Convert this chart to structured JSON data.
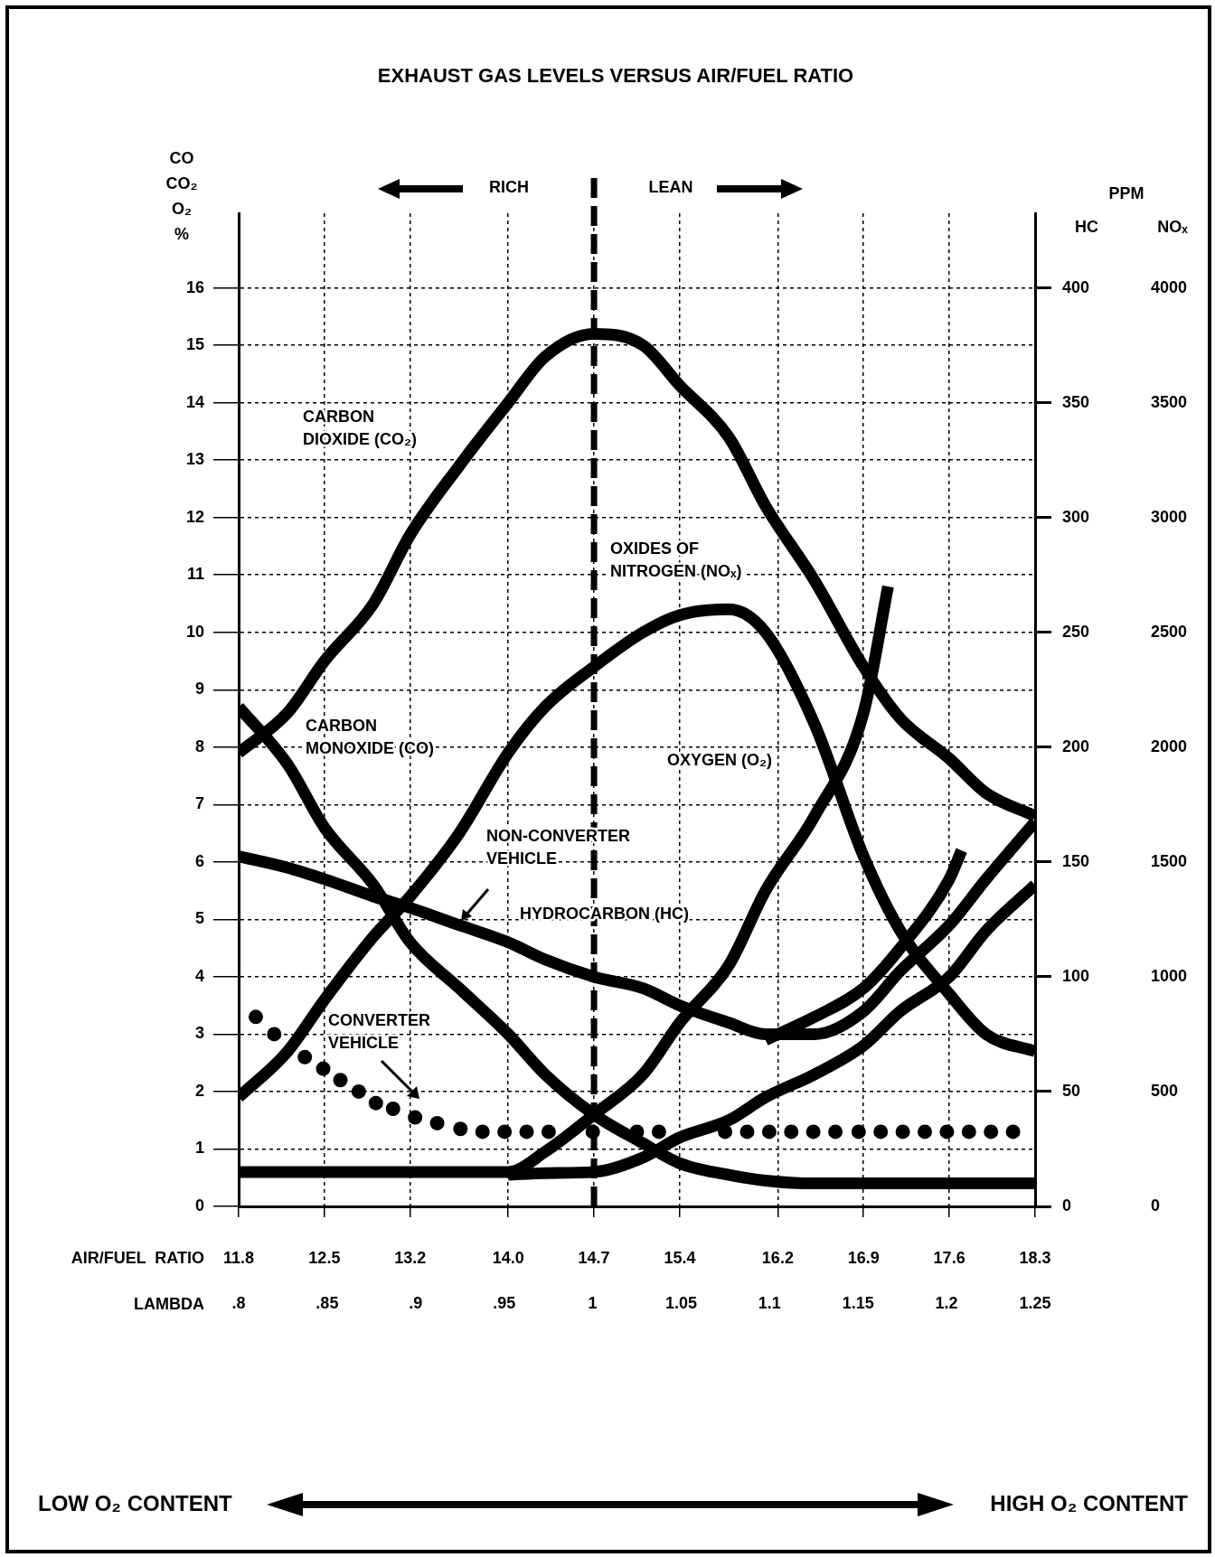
{
  "chart_data": {
    "type": "line",
    "title": "EXHAUST GAS LEVELS VERSUS AIR/FUEL RATIO",
    "xlabel": "AIR/FUEL  RATIO",
    "x2label": "LAMBDA",
    "ylabel": "CO\nCO₂\nO₂\n%",
    "y2label": "HC",
    "y3label": "NOₓ",
    "xlim": [
      11.8,
      18.3
    ],
    "xticks": [
      {
        "value": 11.8,
        "label": "11.8"
      },
      {
        "value": 12.5,
        "label": "12.5"
      },
      {
        "value": 13.2,
        "label": "13.2"
      },
      {
        "value": 14.0,
        "label": "14.0"
      },
      {
        "value": 14.7,
        "label": "14.7"
      },
      {
        "value": 15.4,
        "label": "15.4"
      },
      {
        "value": 16.2,
        "label": "16.2"
      },
      {
        "value": 16.9,
        "label": "16.9"
      },
      {
        "value": 17.6,
        "label": "17.6"
      },
      {
        "value": 18.3,
        "label": "18.3"
      }
    ],
    "x2lim": [
      0.8,
      1.25
    ],
    "x2ticks": [
      {
        "value": 0.8,
        "label": ".8"
      },
      {
        "value": 0.85,
        "label": ".85"
      },
      {
        "value": 0.9,
        "label": ".9"
      },
      {
        "value": 0.95,
        "label": ".95"
      },
      {
        "value": 1,
        "label": "1"
      },
      {
        "value": 1.05,
        "label": "1.05"
      },
      {
        "value": 1.1,
        "label": "1.1"
      },
      {
        "value": 1.15,
        "label": "1.15"
      },
      {
        "value": 1.2,
        "label": "1.2"
      },
      {
        "value": 1.25,
        "label": "1.25"
      }
    ],
    "ylim": [
      0,
      17.3
    ],
    "yticks": [
      0,
      1,
      2,
      3,
      4,
      5,
      6,
      7,
      8,
      9,
      10,
      11,
      12,
      13,
      14,
      15,
      16
    ],
    "y2lim": [
      0,
      432.5
    ],
    "y2ticks": [
      0,
      50,
      100,
      150,
      200,
      250,
      300,
      350,
      400
    ],
    "y3lim": [
      0,
      4325
    ],
    "y3ticks": [
      0,
      500,
      1000,
      1500,
      2000,
      2500,
      3000,
      3500,
      4000
    ],
    "grid": true,
    "marker": "none",
    "line_style": "solid",
    "series": [
      {
        "color": "#000000",
        "x": [
          11.8,
          12.2,
          12.5,
          12.9,
          13.2,
          13.6,
          14.0,
          14.3,
          14.7,
          15.1,
          15.4,
          15.8,
          16.1,
          16.5,
          16.9,
          17.2,
          17.6,
          17.9,
          18.3
        ],
        "values": [
          7.9,
          8.6,
          9.5,
          10.5,
          11.7,
          12.9,
          14.0,
          14.8,
          15.2,
          15.0,
          14.3,
          13.4,
          12.2,
          10.9,
          9.4,
          8.5,
          7.8,
          7.2,
          6.8
        ]
      },
      {
        "color": "#000000",
        "x": [
          11.8,
          12.2,
          12.5,
          12.9,
          13.2,
          13.6,
          14.0,
          14.3,
          14.7,
          15.1,
          15.4,
          15.8,
          16.1,
          16.5,
          16.9,
          17.2,
          17.6,
          17.9,
          18.3
        ],
        "values": [
          8.7,
          7.7,
          6.6,
          5.6,
          4.6,
          3.8,
          3.0,
          2.3,
          1.6,
          1.1,
          0.75,
          0.55,
          0.45,
          0.4,
          0.4,
          0.4,
          0.4,
          0.4,
          0.4
        ]
      },
      {
        "color": "#000000",
        "x": [
          11.8,
          12.2,
          12.5,
          12.9,
          13.2,
          13.6,
          14.0,
          14.3,
          14.7,
          15.1,
          15.4,
          15.8,
          16.1,
          16.5,
          16.9,
          17.2,
          17.6,
          17.9,
          18.3
        ],
        "values": [
          1.9,
          2.7,
          3.6,
          4.7,
          5.4,
          6.5,
          7.9,
          8.7,
          9.4,
          10.0,
          10.3,
          10.4,
          10.0,
          8.4,
          6.1,
          4.8,
          3.7,
          3.0,
          2.7
        ]
      },
      {
        "color": "#000000",
        "x": [
          11.8,
          12.2,
          12.5,
          12.9,
          13.2,
          13.6,
          14.0,
          14.3,
          14.7,
          15.1,
          15.4,
          15.8,
          16.1,
          16.5,
          16.9,
          17.2,
          17.6,
          17.9,
          18.3
        ],
        "values": [
          6.1,
          5.9,
          5.7,
          5.4,
          5.2,
          4.9,
          4.6,
          4.3,
          4.0,
          3.8,
          3.5,
          3.2,
          3.0,
          3.0,
          3.4,
          4.1,
          4.9,
          5.7,
          6.7
        ]
      },
      {
        "color": "#000000",
        "x": [
          11.8,
          12.2,
          12.5,
          12.9,
          13.2,
          13.6,
          14.0,
          14.3,
          14.7,
          15.1,
          15.4,
          15.8,
          16.1,
          16.5,
          16.9,
          17.1
        ],
        "values": [
          0.6,
          0.6,
          0.6,
          0.6,
          0.6,
          0.6,
          0.6,
          0.95,
          1.6,
          2.3,
          3.2,
          4.2,
          5.5,
          6.8,
          8.6,
          10.8
        ]
      },
      {
        "color": "#000000",
        "x": [
          14.0,
          14.3,
          14.7,
          15.1,
          15.4,
          15.8,
          16.1,
          16.5,
          16.9,
          17.2,
          17.6,
          17.9,
          18.3
        ],
        "values": [
          0.55,
          0.58,
          0.6,
          0.85,
          1.2,
          1.5,
          1.9,
          2.3,
          2.8,
          3.4,
          4.0,
          4.8,
          5.6
        ]
      },
      {
        "color": "#000000",
        "x": [
          16.1,
          16.5,
          16.9,
          17.2,
          17.6,
          17.7
        ],
        "values": [
          2.9,
          3.3,
          3.8,
          4.5,
          5.7,
          6.2
        ]
      },
      {
        "type": "scatter",
        "marker": "circle",
        "color": "#000000",
        "x": [
          11.94,
          12.09,
          12.34,
          12.49,
          12.63,
          12.78,
          12.92,
          13.06,
          13.24,
          13.42,
          13.61,
          13.79,
          13.97,
          14.15,
          14.33,
          14.51,
          14.69,
          14.87,
          15.05,
          15.23,
          15.41,
          15.59,
          15.77,
          15.95,
          16.13,
          16.31,
          16.49,
          16.67,
          16.86,
          17.04,
          17.22,
          17.4,
          17.58,
          17.76,
          17.94,
          18.12
        ],
        "values": [
          3.3,
          3.0,
          2.6,
          2.4,
          2.2,
          2.0,
          1.8,
          1.7,
          1.55,
          1.45,
          1.35,
          1.3,
          1.3,
          1.3,
          1.3,
          null,
          1.3,
          null,
          1.3,
          1.3,
          null,
          null,
          1.3,
          1.3,
          1.3,
          1.3,
          1.3,
          1.3,
          1.3,
          1.3,
          1.3,
          1.3,
          1.3,
          1.3,
          1.3,
          1.3
        ]
      }
    ],
    "ref_lines": [
      {
        "axis": "x",
        "value": 14.7,
        "line_style": "dashed",
        "color": "#000000"
      }
    ],
    "annotations": [
      "CARBON\nDIOXIDE (CO₂)",
      "CARBON\nMONOXIDE (CO)",
      "OXIDES OF\nNITROGEN (NOₓ)",
      "OXYGEN (O₂)",
      "NON-CONVERTER\nVEHICLE",
      "HYDROCARBON (HC)",
      "CONVERTER\nVEHICLE",
      "RICH",
      "LEAN",
      "PPM",
      "LOW O₂ CONTENT",
      "HIGH O₂ CONTENT"
    ]
  }
}
